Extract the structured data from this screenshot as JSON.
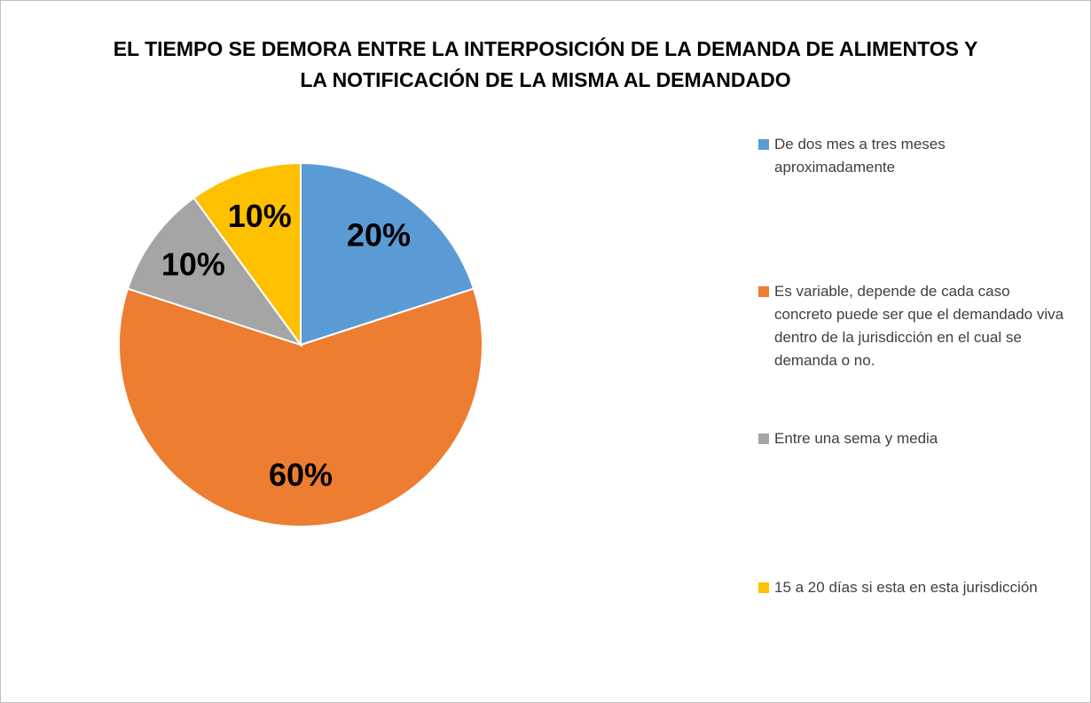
{
  "chart_data": {
    "type": "pie",
    "title": "EL TIEMPO SE DEMORA ENTRE LA INTERPOSICIÓN DE LA DEMANDA DE ALIMENTOS Y LA NOTIFICACIÓN DE LA MISMA AL DEMANDADO",
    "categories": [
      "De dos mes a tres meses aproximadamente",
      "Es variable, depende de cada caso concreto puede ser que el demandado viva dentro de la jurisdicción en el cual se demanda o no.",
      "Entre  una sema y media",
      "15 a 20 días si esta en esta jurisdicción"
    ],
    "values": [
      20,
      60,
      10,
      10
    ],
    "value_labels": [
      "20%",
      "60%",
      "10%",
      "10%"
    ],
    "colors": [
      "#5b9bd5",
      "#ed7d31",
      "#a5a5a5",
      "#ffc000"
    ],
    "legend": "right"
  }
}
